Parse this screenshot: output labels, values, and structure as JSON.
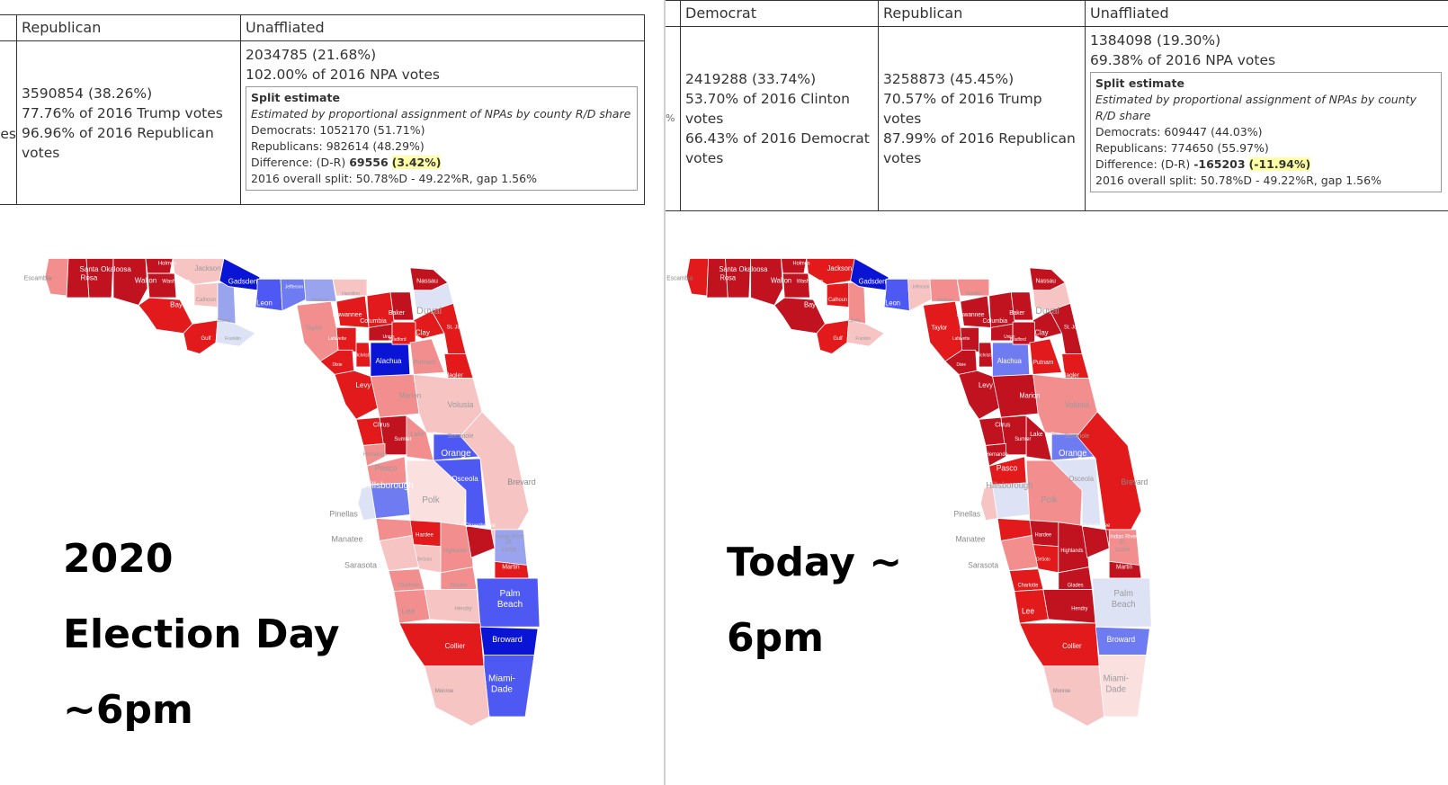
{
  "left": {
    "headers": {
      "col_a": "Republican",
      "col_b": "Unaffliated"
    },
    "cutoff_fragment": "es",
    "republican": [
      "3590854 (38.26%)",
      "77.76% of 2016 Trump votes",
      "96.96% of 2016 Republican votes"
    ],
    "unaffiliated": [
      "2034785 (21.68%)",
      "102.00% of 2016 NPA votes"
    ],
    "split": {
      "title": "Split estimate",
      "note": "Estimated by proportional assignment of NPAs by county R/D share",
      "democrats": "Democrats: 1052170 (51.71%)",
      "republicans": "Republicans: 982614 (48.29%)",
      "diff_label": "Difference: (D-R) ",
      "diff_value": "69556",
      "diff_pct": "(3.42%)",
      "overall": "2016 overall split: 50.78%D - 49.22%R, gap 1.56%"
    },
    "caption": [
      "2020",
      "Election Day",
      "~6pm"
    ]
  },
  "right": {
    "headers": {
      "col_a": "Democrat",
      "col_b": "Republican",
      "col_c": "Unaffliated"
    },
    "cutoff_fragment": "%",
    "democrat": [
      "2419288 (33.74%)",
      "53.70% of 2016 Clinton votes",
      "66.43% of 2016 Democrat votes"
    ],
    "republican": [
      "3258873 (45.45%)",
      "70.57% of 2016 Trump votes",
      "87.99% of 2016 Republican votes"
    ],
    "unaffiliated": [
      "1384098 (19.30%)",
      "69.38% of 2016 NPA votes"
    ],
    "split": {
      "title": "Split estimate",
      "note": "Estimated by proportional assignment of NPAs by county R/D share",
      "democrats": "Democrats: 609447 (44.03%)",
      "republicans": "Republicans: 774650 (55.97%)",
      "diff_label": "Difference: (D-R) ",
      "diff_value": "-165203",
      "diff_pct": "(-11.94%)",
      "overall": "2016 overall split: 50.78%D - 49.22%R, gap 1.56%"
    },
    "caption": [
      "Today ~",
      "6pm"
    ]
  },
  "map_colors": {
    "dark_red": "#c1121f",
    "red": "#e31a1c",
    "mid_red": "#ef4a4a",
    "light_red": "#f28e8e",
    "pale_red": "#f7c4c4",
    "very_pale_red": "#fbe0e0",
    "pale_blue": "#dde3f5",
    "light_blue": "#9aa3ee",
    "mid_blue": "#6f7bf0",
    "blue": "#4d59f2",
    "dark_blue": "#0a14d4"
  },
  "maps": {
    "left": [
      {
        "name": "Escambia",
        "color": "light_red"
      },
      {
        "name": "Santa Rosa",
        "color": "dark_red"
      },
      {
        "name": "Okaloosa",
        "color": "dark_red"
      },
      {
        "name": "Walton",
        "color": "dark_red"
      },
      {
        "name": "Holmes",
        "color": "dark_red"
      },
      {
        "name": "Washington",
        "color": "dark_red"
      },
      {
        "name": "Bay",
        "color": "red"
      },
      {
        "name": "Jackson",
        "color": "pale_red"
      },
      {
        "name": "Calhoun",
        "color": "pale_red"
      },
      {
        "name": "Liberty",
        "color": "light_blue"
      },
      {
        "name": "Gulf",
        "color": "red"
      },
      {
        "name": "Franklin",
        "color": "pale_blue"
      },
      {
        "name": "Gadsden",
        "color": "dark_blue"
      },
      {
        "name": "Leon",
        "color": "blue"
      },
      {
        "name": "Jefferson",
        "color": "mid_blue"
      },
      {
        "name": "Madison",
        "color": "light_blue"
      },
      {
        "name": "Hamilton",
        "color": "pale_red"
      },
      {
        "name": "Suwannee",
        "color": "red"
      },
      {
        "name": "Columbia",
        "color": "red"
      },
      {
        "name": "Baker",
        "color": "dark_red"
      },
      {
        "name": "Nassau",
        "color": "dark_red"
      },
      {
        "name": "Duval",
        "color": "pale_blue"
      },
      {
        "name": "Clay",
        "color": "red"
      },
      {
        "name": "St. Johns",
        "color": "red"
      },
      {
        "name": "Lafayette",
        "color": "red"
      },
      {
        "name": "Taylor",
        "color": "light_red"
      },
      {
        "name": "Dixie",
        "color": "red"
      },
      {
        "name": "Gilchrist",
        "color": "red"
      },
      {
        "name": "Alachua",
        "color": "dark_blue"
      },
      {
        "name": "Union",
        "color": "dark_red"
      },
      {
        "name": "Bradford",
        "color": "red"
      },
      {
        "name": "Putnam",
        "color": "light_red"
      },
      {
        "name": "Flagler",
        "color": "red"
      },
      {
        "name": "Levy",
        "color": "red"
      },
      {
        "name": "Marion",
        "color": "light_red"
      },
      {
        "name": "Volusia",
        "color": "pale_red"
      },
      {
        "name": "Citrus",
        "color": "red"
      },
      {
        "name": "Sumter",
        "color": "dark_red"
      },
      {
        "name": "Lake",
        "color": "light_red"
      },
      {
        "name": "Seminole",
        "color": "pale_blue"
      },
      {
        "name": "Orange",
        "color": "blue"
      },
      {
        "name": "Hernando",
        "color": "light_red"
      },
      {
        "name": "Pasco",
        "color": "light_red"
      },
      {
        "name": "Pinellas",
        "color": "pale_blue"
      },
      {
        "name": "Hillsborough",
        "color": "mid_blue"
      },
      {
        "name": "Polk",
        "color": "very_pale_red"
      },
      {
        "name": "Osceola",
        "color": "blue"
      },
      {
        "name": "Brevard",
        "color": "pale_red"
      },
      {
        "name": "Indian River",
        "color": "pale_red"
      },
      {
        "name": "Manatee",
        "color": "light_red"
      },
      {
        "name": "Sarasota",
        "color": "pale_red"
      },
      {
        "name": "Hardee",
        "color": "red"
      },
      {
        "name": "DeSoto",
        "color": "pale_red"
      },
      {
        "name": "Highlands",
        "color": "light_red"
      },
      {
        "name": "Okeechobee",
        "color": "dark_red"
      },
      {
        "name": "St. Lucie",
        "color": "light_blue"
      },
      {
        "name": "Martin",
        "color": "red"
      },
      {
        "name": "Charlotte",
        "color": "light_red"
      },
      {
        "name": "Glades",
        "color": "light_red"
      },
      {
        "name": "Lee",
        "color": "light_red"
      },
      {
        "name": "Hendry",
        "color": "pale_red"
      },
      {
        "name": "Palm Beach",
        "color": "blue"
      },
      {
        "name": "Collier",
        "color": "red"
      },
      {
        "name": "Broward",
        "color": "dark_blue"
      },
      {
        "name": "Miami-Dade",
        "color": "blue"
      },
      {
        "name": "Monroe",
        "color": "pale_red"
      }
    ],
    "right": [
      {
        "name": "Escambia",
        "color": "red"
      },
      {
        "name": "Santa Rosa",
        "color": "dark_red"
      },
      {
        "name": "Okaloosa",
        "color": "dark_red"
      },
      {
        "name": "Walton",
        "color": "dark_red"
      },
      {
        "name": "Holmes",
        "color": "dark_red"
      },
      {
        "name": "Washington",
        "color": "dark_red"
      },
      {
        "name": "Bay",
        "color": "dark_red"
      },
      {
        "name": "Jackson",
        "color": "red"
      },
      {
        "name": "Calhoun",
        "color": "red"
      },
      {
        "name": "Liberty",
        "color": "light_red"
      },
      {
        "name": "Gulf",
        "color": "red"
      },
      {
        "name": "Franklin",
        "color": "pale_red"
      },
      {
        "name": "Gadsden",
        "color": "dark_blue"
      },
      {
        "name": "Leon",
        "color": "blue"
      },
      {
        "name": "Jefferson",
        "color": "pale_red"
      },
      {
        "name": "Madison",
        "color": "light_red"
      },
      {
        "name": "Hamilton",
        "color": "light_red"
      },
      {
        "name": "Suwannee",
        "color": "dark_red"
      },
      {
        "name": "Columbia",
        "color": "dark_red"
      },
      {
        "name": "Baker",
        "color": "dark_red"
      },
      {
        "name": "Nassau",
        "color": "dark_red"
      },
      {
        "name": "Duval",
        "color": "pale_red"
      },
      {
        "name": "Clay",
        "color": "dark_red"
      },
      {
        "name": "St. Johns",
        "color": "dark_red"
      },
      {
        "name": "Lafayette",
        "color": "dark_red"
      },
      {
        "name": "Taylor",
        "color": "red"
      },
      {
        "name": "Dixie",
        "color": "dark_red"
      },
      {
        "name": "Gilchrist",
        "color": "dark_red"
      },
      {
        "name": "Alachua",
        "color": "mid_blue"
      },
      {
        "name": "Union",
        "color": "dark_red"
      },
      {
        "name": "Bradford",
        "color": "dark_red"
      },
      {
        "name": "Putnam",
        "color": "red"
      },
      {
        "name": "Flagler",
        "color": "red"
      },
      {
        "name": "Levy",
        "color": "dark_red"
      },
      {
        "name": "Marion",
        "color": "dark_red"
      },
      {
        "name": "Volusia",
        "color": "light_red"
      },
      {
        "name": "Citrus",
        "color": "dark_red"
      },
      {
        "name": "Sumter",
        "color": "dark_red"
      },
      {
        "name": "Lake",
        "color": "dark_red"
      },
      {
        "name": "Seminole",
        "color": "light_red"
      },
      {
        "name": "Orange",
        "color": "mid_blue"
      },
      {
        "name": "Hernando",
        "color": "dark_red"
      },
      {
        "name": "Pasco",
        "color": "red"
      },
      {
        "name": "Pinellas",
        "color": "pale_red"
      },
      {
        "name": "Hillsborough",
        "color": "pale_blue"
      },
      {
        "name": "Polk",
        "color": "light_red"
      },
      {
        "name": "Osceola",
        "color": "pale_blue"
      },
      {
        "name": "Brevard",
        "color": "red"
      },
      {
        "name": "Indian River",
        "color": "dark_red"
      },
      {
        "name": "Manatee",
        "color": "red"
      },
      {
        "name": "Sarasota",
        "color": "light_red"
      },
      {
        "name": "Hardee",
        "color": "dark_red"
      },
      {
        "name": "DeSoto",
        "color": "red"
      },
      {
        "name": "Highlands",
        "color": "dark_red"
      },
      {
        "name": "Okeechobee",
        "color": "dark_red"
      },
      {
        "name": "St. Lucie",
        "color": "light_red"
      },
      {
        "name": "Martin",
        "color": "dark_red"
      },
      {
        "name": "Charlotte",
        "color": "red"
      },
      {
        "name": "Glades",
        "color": "dark_red"
      },
      {
        "name": "Lee",
        "color": "red"
      },
      {
        "name": "Hendry",
        "color": "dark_red"
      },
      {
        "name": "Palm Beach",
        "color": "pale_blue"
      },
      {
        "name": "Collier",
        "color": "red"
      },
      {
        "name": "Broward",
        "color": "mid_blue"
      },
      {
        "name": "Miami-Dade",
        "color": "very_pale_red"
      },
      {
        "name": "Monroe",
        "color": "pale_red"
      }
    ]
  }
}
